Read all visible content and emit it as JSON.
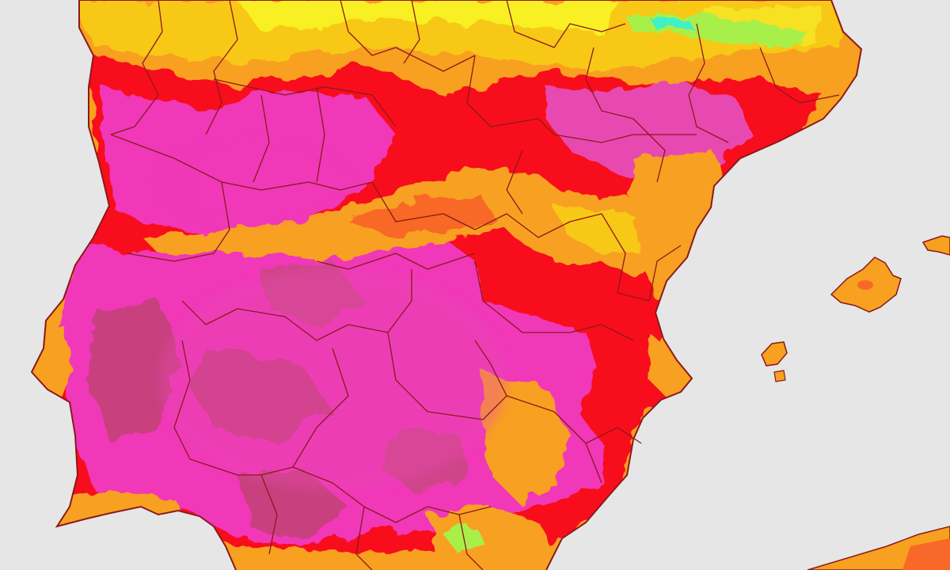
{
  "map": {
    "sea_color": "#e6e6e6",
    "border_color": "#8b1a1a",
    "palette": {
      "cyan": "#3ff0c8",
      "green": "#a8f048",
      "yellow": "#f8f020",
      "yellow_orange": "#f8c818",
      "orange": "#f8a020",
      "orange_red": "#f86828",
      "red": "#f80f1a",
      "magenta": "#f038b8",
      "pink": "#e84ab0",
      "dark_pink": "#c8407e"
    },
    "regions": [
      {
        "name": "iberian-peninsula"
      },
      {
        "name": "mallorca"
      },
      {
        "name": "menorca"
      },
      {
        "name": "ibiza"
      },
      {
        "name": "north-africa-coast"
      }
    ]
  }
}
